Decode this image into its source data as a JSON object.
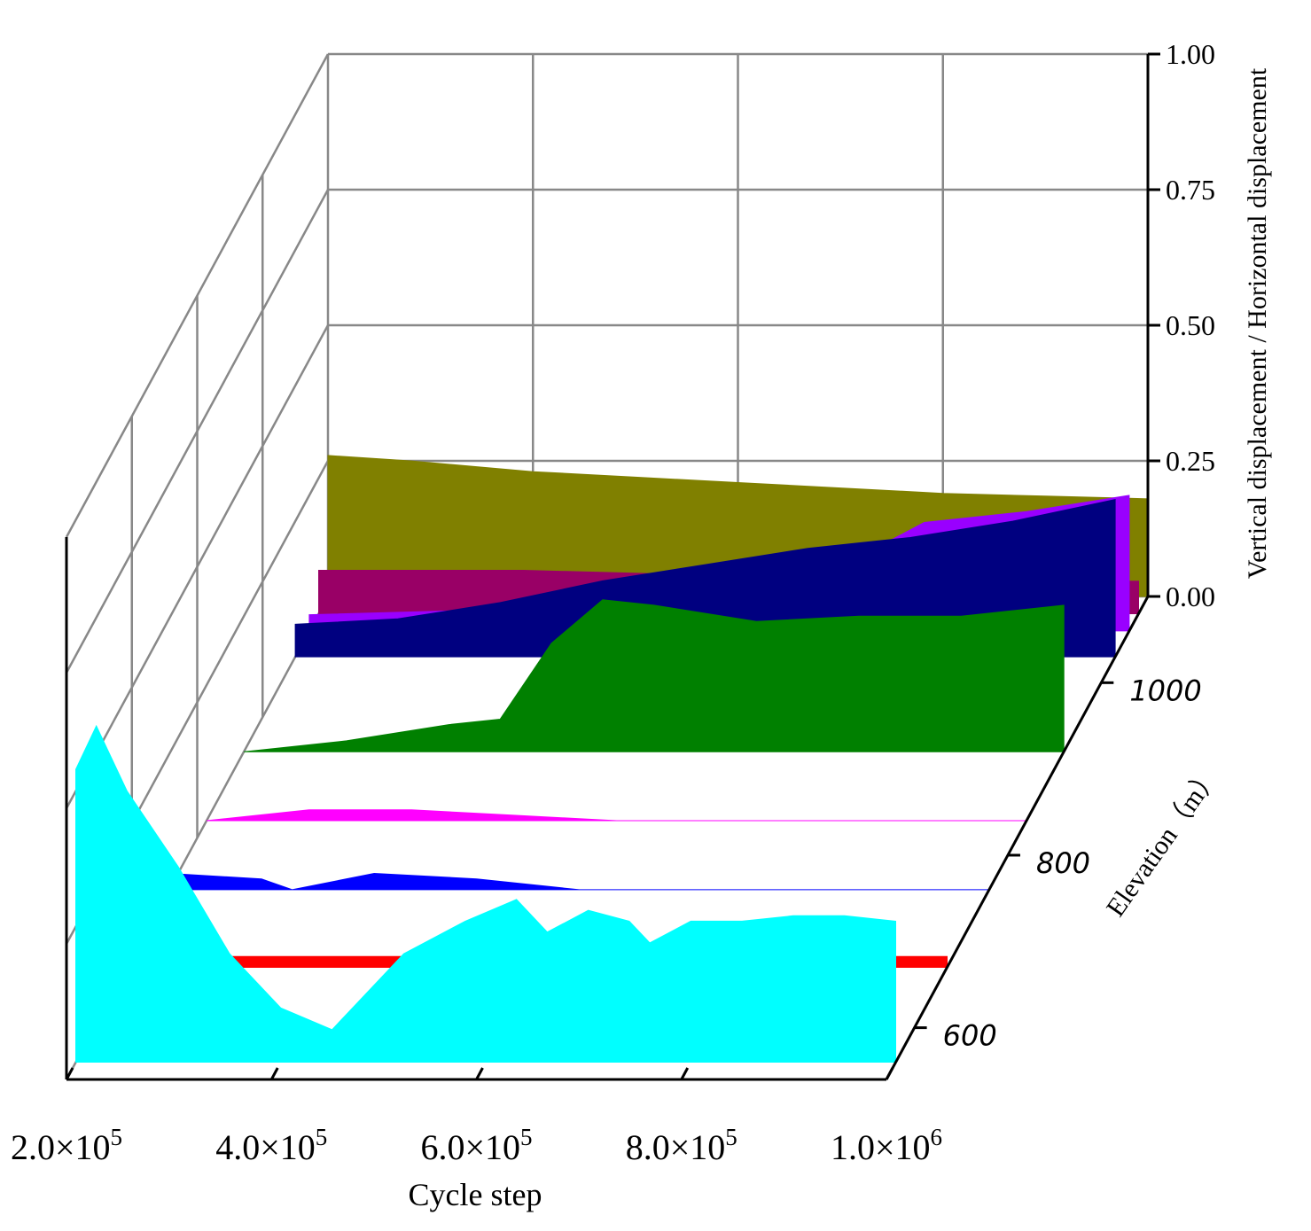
{
  "chart_data": {
    "type": "area",
    "style": "3d-ribbon waterfall",
    "xlabel": "Cycle step",
    "ylabel": "Vertical displacement / Horizontal displacement",
    "zlabel": "Elevation（m）",
    "x_ticks": [
      "2.0×10^5",
      "4.0×10^5",
      "6.0×10^5",
      "8.0×10^5",
      "1.0×10^6"
    ],
    "x_tick_values": [
      200000,
      400000,
      600000,
      800000,
      1000000
    ],
    "xlim": [
      200000,
      1000000
    ],
    "y_ticks": [
      "0.00",
      "0.25",
      "0.50",
      "0.75",
      "1.00"
    ],
    "y_tick_values": [
      0,
      0.25,
      0.5,
      0.75,
      1.0
    ],
    "ylim": [
      0,
      1.0
    ],
    "z_ticks": [
      "600",
      "800",
      "1000"
    ],
    "z_tick_values": [
      600,
      800,
      1000
    ],
    "zlim": [
      540,
      1100
    ],
    "grid": true,
    "legend": "none",
    "series": [
      {
        "elevation": 1100,
        "color": "#808000",
        "x": [
          200000,
          280000,
          400000,
          500000,
          600000,
          700000,
          800000,
          900000,
          1000000
        ],
        "values": [
          0.26,
          0.25,
          0.23,
          0.22,
          0.21,
          0.2,
          0.19,
          0.185,
          0.18
        ]
      },
      {
        "elevation": 1080,
        "color": "#990066",
        "x": [
          200000,
          400000,
          600000,
          700000,
          800000,
          900000,
          1000000
        ],
        "values": [
          0.08,
          0.08,
          0.07,
          0.06,
          0.06,
          0.06,
          0.06
        ]
      },
      {
        "elevation": 1060,
        "color": "#9900FF",
        "x": [
          200000,
          400000,
          600000,
          700000,
          750000,
          800000,
          900000,
          1000000
        ],
        "values": [
          0.03,
          0.04,
          0.06,
          0.09,
          0.15,
          0.2,
          0.22,
          0.25
        ]
      },
      {
        "elevation": 1030,
        "color": "#000080",
        "x": [
          200000,
          300000,
          400000,
          500000,
          600000,
          700000,
          800000,
          900000,
          1000000
        ],
        "values": [
          0.06,
          0.07,
          0.1,
          0.14,
          0.17,
          0.2,
          0.22,
          0.25,
          0.29
        ]
      },
      {
        "elevation": 920,
        "color": "#008000",
        "x": [
          200000,
          300000,
          400000,
          450000,
          500000,
          550000,
          600000,
          700000,
          800000,
          900000,
          1000000
        ],
        "values": [
          0.0,
          0.02,
          0.05,
          0.06,
          0.2,
          0.28,
          0.27,
          0.24,
          0.25,
          0.25,
          0.27
        ]
      },
      {
        "elevation": 840,
        "color": "#FF00FF",
        "x": [
          200000,
          300000,
          400000,
          500000,
          600000,
          700000,
          800000,
          900000,
          1000000
        ],
        "values": [
          0.0,
          0.02,
          0.02,
          0.01,
          0.0,
          0.0,
          0.0,
          0.0,
          0.0
        ]
      },
      {
        "elevation": 760,
        "color": "#0000FF",
        "x": [
          200000,
          290000,
          320000,
          400000,
          500000,
          600000,
          800000,
          1000000
        ],
        "values": [
          0.03,
          0.02,
          0.0,
          0.03,
          0.02,
          0.0,
          0.0,
          0.0
        ]
      },
      {
        "elevation": 670,
        "color": "#FF0000",
        "x": [
          200000,
          1000000
        ],
        "values": [
          0.02,
          0.02
        ]
      },
      {
        "elevation": 560,
        "color": "#00FFFF",
        "x": [
          200000,
          210000,
          220000,
          250000,
          300000,
          350000,
          400000,
          450000,
          520000,
          580000,
          630000,
          660000,
          700000,
          740000,
          760000,
          800000,
          850000,
          900000,
          950000,
          1000000
        ],
        "values": [
          0.54,
          0.58,
          0.62,
          0.5,
          0.36,
          0.2,
          0.1,
          0.06,
          0.2,
          0.26,
          0.3,
          0.24,
          0.28,
          0.26,
          0.22,
          0.26,
          0.26,
          0.27,
          0.27,
          0.26
        ]
      }
    ]
  }
}
